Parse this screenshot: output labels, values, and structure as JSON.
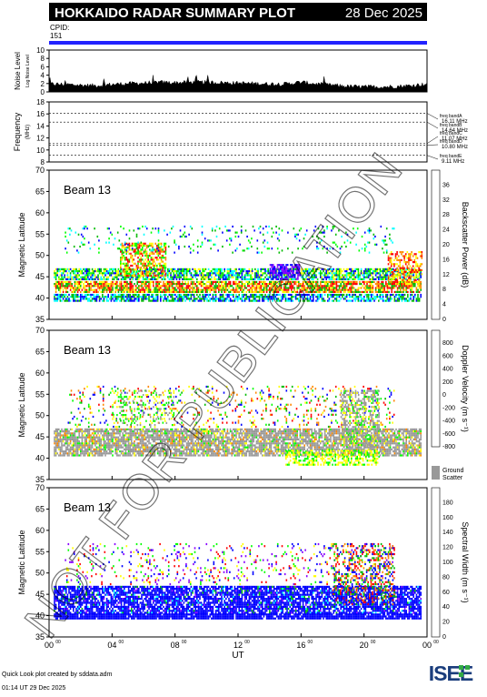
{
  "header": {
    "title": "HOKKAIDO RADAR SUMMARY PLOT",
    "date": "28 Dec 2025",
    "cpid_label": "CPID:",
    "cpid_value": "151"
  },
  "chart_data": [
    {
      "type": "area",
      "name": "noise",
      "ylabel": "Noise Level",
      "ylabel_sub": "Log Noise Level",
      "ylim": [
        0,
        10
      ],
      "yticks": [
        0,
        2,
        4,
        6,
        8,
        10
      ],
      "x": [
        0,
        1,
        2,
        3,
        4,
        5,
        6,
        7,
        8,
        9,
        10,
        11,
        12,
        13,
        14,
        15,
        16,
        17,
        18,
        19,
        20,
        21,
        22,
        23,
        24
      ],
      "values": [
        1.9,
        1.8,
        1.6,
        1.5,
        1.8,
        2.0,
        2.1,
        2.3,
        2.2,
        2.3,
        2.3,
        2.2,
        2.1,
        2.0,
        1.9,
        1.9,
        2.3,
        1.9,
        1.6,
        1.3,
        1.2,
        1.2,
        1.3,
        1.5,
        1.9
      ]
    },
    {
      "type": "line",
      "name": "frequency",
      "ylabel": "Frequency",
      "yunit": "(MHz)",
      "ylim": [
        8,
        18
      ],
      "yticks": [
        8,
        10,
        12,
        14,
        16,
        18
      ],
      "bands": [
        {
          "label": "freq bandA",
          "value_label": "16.11 MHz",
          "value": 16.11
        },
        {
          "label": "freq bandB",
          "value_label": "14.64 MHz",
          "value": 14.64
        },
        {
          "label": "freq bandC",
          "value_label": "11.07 MHz",
          "value": 11.07
        },
        {
          "label": "freq bandD",
          "value_label": "10.80 MHz",
          "value": 10.8
        },
        {
          "label": "freq bandE",
          "value_label": "9.11 MHz",
          "value": 9.11
        }
      ]
    },
    {
      "type": "heatmap",
      "name": "power",
      "beam": "Beam 13",
      "ylabel": "Magnetic Latitude",
      "ylim": [
        35,
        70
      ],
      "yticks": [
        35,
        40,
        45,
        50,
        55,
        60,
        65,
        70
      ],
      "colorbar_label": "Backscatter Power (dB)",
      "colorbar_ticks": [
        "0",
        "4",
        "8",
        "12",
        "16",
        "20",
        "24",
        "28",
        "32",
        "36"
      ],
      "colors": [
        "#ff0000",
        "#ff8800",
        "#ffff00",
        "#00ff00",
        "#00bb00",
        "#00ffff",
        "#0000ff",
        "#8800ff"
      ]
    },
    {
      "type": "heatmap",
      "name": "velocity",
      "beam": "Beam 13",
      "ylabel": "Magnetic Latitude",
      "ylim": [
        35,
        70
      ],
      "yticks": [
        35,
        40,
        45,
        50,
        55,
        60,
        65,
        70
      ],
      "colorbar_label": "Doppler Velocity (m s⁻¹)",
      "colorbar_ticks": [
        "-800",
        "-600",
        "-400",
        "-200",
        "0",
        "200",
        "400",
        "600",
        "800"
      ],
      "ground_scatter_label_1": "Ground",
      "ground_scatter_label_2": "Scatter",
      "colors": [
        "#ff0000",
        "#ff8800",
        "#ffff00",
        "#00ff00",
        "#00bb00",
        "#00ffff",
        "#0000ff",
        "#8800ff"
      ]
    },
    {
      "type": "heatmap",
      "name": "width",
      "beam": "Beam 13",
      "ylabel": "Magnetic Latitude",
      "ylim": [
        35,
        70
      ],
      "yticks": [
        35,
        40,
        45,
        50,
        55,
        60,
        65,
        70
      ],
      "colorbar_label": "Spectral Width (m s⁻¹)",
      "colorbar_ticks": [
        "0",
        "20",
        "40",
        "60",
        "80",
        "100",
        "120",
        "140",
        "160",
        "180"
      ],
      "colors": [
        "#ff0000",
        "#ff8800",
        "#ffff00",
        "#00ff00",
        "#00bb00",
        "#00ffff",
        "#0000ff",
        "#8800ff"
      ]
    }
  ],
  "xaxis": {
    "label": "UT",
    "ticks": [
      {
        "hour": 0,
        "main": "00",
        "sup": "00"
      },
      {
        "hour": 4,
        "main": "04",
        "sup": "00"
      },
      {
        "hour": 8,
        "main": "08",
        "sup": "00"
      },
      {
        "hour": 12,
        "main": "12",
        "sup": "00"
      },
      {
        "hour": 16,
        "main": "16",
        "sup": "00"
      },
      {
        "hour": 20,
        "main": "20",
        "sup": "00"
      },
      {
        "hour": 24,
        "main": "00",
        "sup": "00"
      }
    ]
  },
  "watermark": "NOT FOR PUBLICATION",
  "footer": {
    "line1": "Quick Look plot created by sddata.adm",
    "line2": "01:14 UT 29 Dec 2025",
    "logo_text": "ISEE"
  }
}
